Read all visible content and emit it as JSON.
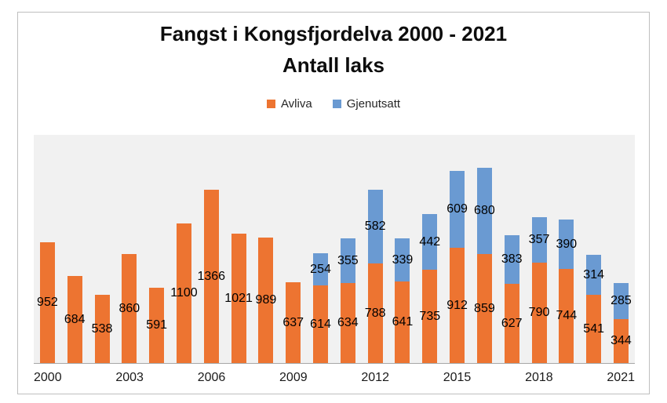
{
  "title": "Fangst i Kongsfjordelva 2000 - 2021",
  "subtitle": "Antall laks",
  "legend": {
    "items": [
      {
        "label": "Avliva",
        "color": "#ed7431"
      },
      {
        "label": "Gjenutsatt",
        "color": "#6a9ad2"
      }
    ]
  },
  "colors": {
    "avliva": "#ed7431",
    "gjenutsatt": "#6a9ad2",
    "plot_background": "#f1f1f1",
    "frame_border": "#bfbfbf",
    "axis_line": "#a6a6a6",
    "label_text": "#000000"
  },
  "chart_data": {
    "type": "bar",
    "stacked": true,
    "title": "Fangst i Kongsfjordelva 2000 - 2021",
    "subtitle": "Antall laks",
    "xlabel": "",
    "ylabel": "",
    "ylim": [
      0,
      1800
    ],
    "grid": false,
    "legend_position": "top",
    "data_labels": "center-of-segment",
    "x_tick_interval": 3,
    "x_tick_labels": [
      "2000",
      "2003",
      "2006",
      "2009",
      "2012",
      "2015",
      "2018",
      "2021"
    ],
    "categories": [
      2000,
      2001,
      2002,
      2003,
      2004,
      2005,
      2006,
      2007,
      2008,
      2009,
      2010,
      2011,
      2012,
      2013,
      2014,
      2015,
      2016,
      2017,
      2018,
      2019,
      2020,
      2021
    ],
    "series": [
      {
        "name": "Avliva",
        "color": "#ed7431",
        "values": [
          952,
          684,
          538,
          860,
          591,
          1100,
          1366,
          1021,
          989,
          637,
          614,
          634,
          788,
          641,
          735,
          912,
          859,
          627,
          790,
          744,
          541,
          344
        ]
      },
      {
        "name": "Gjenutsatt",
        "color": "#6a9ad2",
        "values": [
          0,
          0,
          0,
          0,
          0,
          0,
          0,
          0,
          0,
          0,
          254,
          355,
          582,
          339,
          442,
          609,
          680,
          383,
          357,
          390,
          314,
          285
        ]
      }
    ]
  }
}
